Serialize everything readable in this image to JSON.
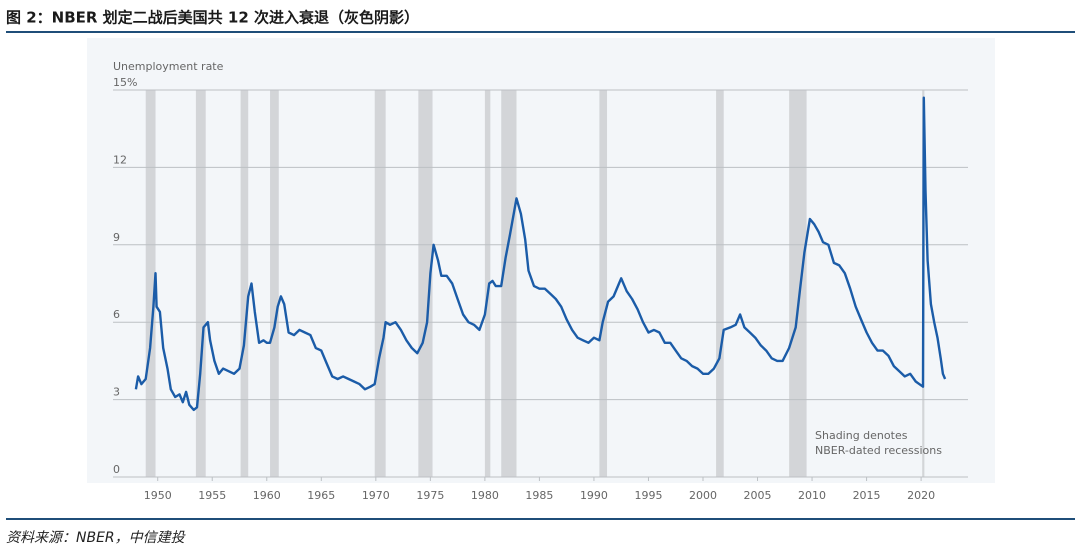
{
  "title": "图 2：NBER 划定二战后美国共 12 次进入衰退（灰色阴影）",
  "source": "资料来源：NBER，中信建投",
  "chart_data": {
    "type": "line",
    "y_label": "Unemployment rate",
    "annotation": [
      "Shading denotes",
      "NBER-dated recessions"
    ],
    "xlim": [
      1945.9,
      2024.3
    ],
    "xticks": [
      1950,
      1955,
      1960,
      1965,
      1970,
      1975,
      1980,
      1985,
      1990,
      1995,
      2000,
      2005,
      2010,
      2015,
      2020
    ],
    "ylim": [
      0,
      15
    ],
    "yticks": [
      0,
      3,
      6,
      9,
      12,
      {
        "value": 15,
        "label": "15%"
      }
    ],
    "grid": true,
    "recessions": [
      [
        1948.9,
        1949.8
      ],
      [
        1953.5,
        1954.4
      ],
      [
        1957.6,
        1958.3
      ],
      [
        1960.3,
        1961.1
      ],
      [
        1969.9,
        1970.9
      ],
      [
        1973.9,
        1975.2
      ],
      [
        1980.0,
        1980.5
      ],
      [
        1981.5,
        1982.9
      ],
      [
        1990.5,
        1991.2
      ],
      [
        2001.2,
        2001.9
      ],
      [
        2007.9,
        2009.5
      ],
      [
        2020.1,
        2020.3
      ]
    ],
    "recession_color": "#d3d5d8",
    "series": [
      {
        "name": "Unemployment rate",
        "color": "#1b5ca8",
        "x": [
          1948.0,
          1948.2,
          1948.5,
          1948.9,
          1949.3,
          1949.6,
          1949.8,
          1949.9,
          1950.2,
          1950.5,
          1950.9,
          1951.2,
          1951.6,
          1952.0,
          1952.3,
          1952.6,
          1952.9,
          1953.3,
          1953.6,
          1953.9,
          1954.2,
          1954.6,
          1954.8,
          1955.2,
          1955.6,
          1956.0,
          1956.5,
          1957.0,
          1957.5,
          1957.9,
          1958.3,
          1958.6,
          1958.9,
          1959.3,
          1959.7,
          1960.0,
          1960.3,
          1960.7,
          1961.0,
          1961.3,
          1961.6,
          1962.0,
          1962.5,
          1963.0,
          1963.5,
          1964.0,
          1964.5,
          1965.0,
          1965.5,
          1966.0,
          1966.5,
          1967.0,
          1967.5,
          1968.0,
          1968.5,
          1969.0,
          1969.5,
          1969.9,
          1970.3,
          1970.7,
          1970.9,
          1971.3,
          1971.8,
          1972.3,
          1972.8,
          1973.3,
          1973.8,
          1974.3,
          1974.7,
          1975.0,
          1975.3,
          1975.7,
          1976.0,
          1976.5,
          1977.0,
          1977.5,
          1978.0,
          1978.5,
          1979.0,
          1979.5,
          1980.0,
          1980.4,
          1980.7,
          1981.0,
          1981.5,
          1981.9,
          1982.3,
          1982.9,
          1983.3,
          1983.7,
          1984.0,
          1984.5,
          1985.0,
          1985.5,
          1986.0,
          1986.5,
          1987.0,
          1987.5,
          1988.0,
          1988.5,
          1989.0,
          1989.5,
          1990.0,
          1990.5,
          1990.8,
          1991.3,
          1991.8,
          1992.3,
          1992.5,
          1993.0,
          1993.5,
          1994.0,
          1994.5,
          1995.0,
          1995.5,
          1996.0,
          1996.5,
          1997.0,
          1997.5,
          1998.0,
          1998.5,
          1999.0,
          1999.5,
          2000.0,
          2000.5,
          2001.0,
          2001.5,
          2001.9,
          2002.5,
          2003.0,
          2003.4,
          2003.8,
          2004.3,
          2004.8,
          2005.3,
          2005.8,
          2006.3,
          2006.8,
          2007.3,
          2007.9,
          2008.5,
          2008.9,
          2009.3,
          2009.8,
          2010.2,
          2010.6,
          2011.0,
          2011.5,
          2012.0,
          2012.5,
          2013.0,
          2013.5,
          2014.0,
          2014.5,
          2015.0,
          2015.5,
          2016.0,
          2016.5,
          2017.0,
          2017.5,
          2018.0,
          2018.5,
          2019.0,
          2019.5,
          2020.17,
          2020.25,
          2020.4,
          2020.6,
          2020.9,
          2021.2,
          2021.5,
          2021.8,
          2022.0,
          2022.2
        ],
        "values": [
          3.4,
          3.9,
          3.6,
          3.8,
          5.0,
          6.6,
          7.9,
          6.6,
          6.4,
          5.0,
          4.2,
          3.4,
          3.1,
          3.2,
          2.9,
          3.3,
          2.8,
          2.6,
          2.7,
          4.0,
          5.8,
          6.0,
          5.3,
          4.5,
          4.0,
          4.2,
          4.1,
          4.0,
          4.2,
          5.1,
          7.0,
          7.5,
          6.4,
          5.2,
          5.3,
          5.2,
          5.2,
          5.8,
          6.6,
          7.0,
          6.7,
          5.6,
          5.5,
          5.7,
          5.6,
          5.5,
          5.0,
          4.9,
          4.4,
          3.9,
          3.8,
          3.9,
          3.8,
          3.7,
          3.6,
          3.4,
          3.5,
          3.6,
          4.6,
          5.4,
          6.0,
          5.9,
          6.0,
          5.7,
          5.3,
          5.0,
          4.8,
          5.2,
          6.0,
          7.9,
          9.0,
          8.4,
          7.8,
          7.8,
          7.5,
          6.9,
          6.3,
          6.0,
          5.9,
          5.7,
          6.3,
          7.5,
          7.6,
          7.4,
          7.4,
          8.5,
          9.4,
          10.8,
          10.2,
          9.2,
          8.0,
          7.4,
          7.3,
          7.3,
          7.1,
          6.9,
          6.6,
          6.1,
          5.7,
          5.4,
          5.3,
          5.2,
          5.4,
          5.3,
          6.0,
          6.8,
          7.0,
          7.5,
          7.7,
          7.2,
          6.9,
          6.5,
          6.0,
          5.6,
          5.7,
          5.6,
          5.2,
          5.2,
          4.9,
          4.6,
          4.5,
          4.3,
          4.2,
          4.0,
          4.0,
          4.2,
          4.6,
          5.7,
          5.8,
          5.9,
          6.3,
          5.8,
          5.6,
          5.4,
          5.1,
          4.9,
          4.6,
          4.5,
          4.5,
          5.0,
          5.8,
          7.3,
          8.7,
          10.0,
          9.8,
          9.5,
          9.1,
          9.0,
          8.3,
          8.2,
          7.9,
          7.3,
          6.6,
          6.1,
          5.6,
          5.2,
          4.9,
          4.9,
          4.7,
          4.3,
          4.1,
          3.9,
          4.0,
          3.7,
          3.5,
          14.7,
          11.1,
          8.4,
          6.7,
          6.0,
          5.4,
          4.6,
          4.0,
          3.8
        ]
      }
    ]
  }
}
